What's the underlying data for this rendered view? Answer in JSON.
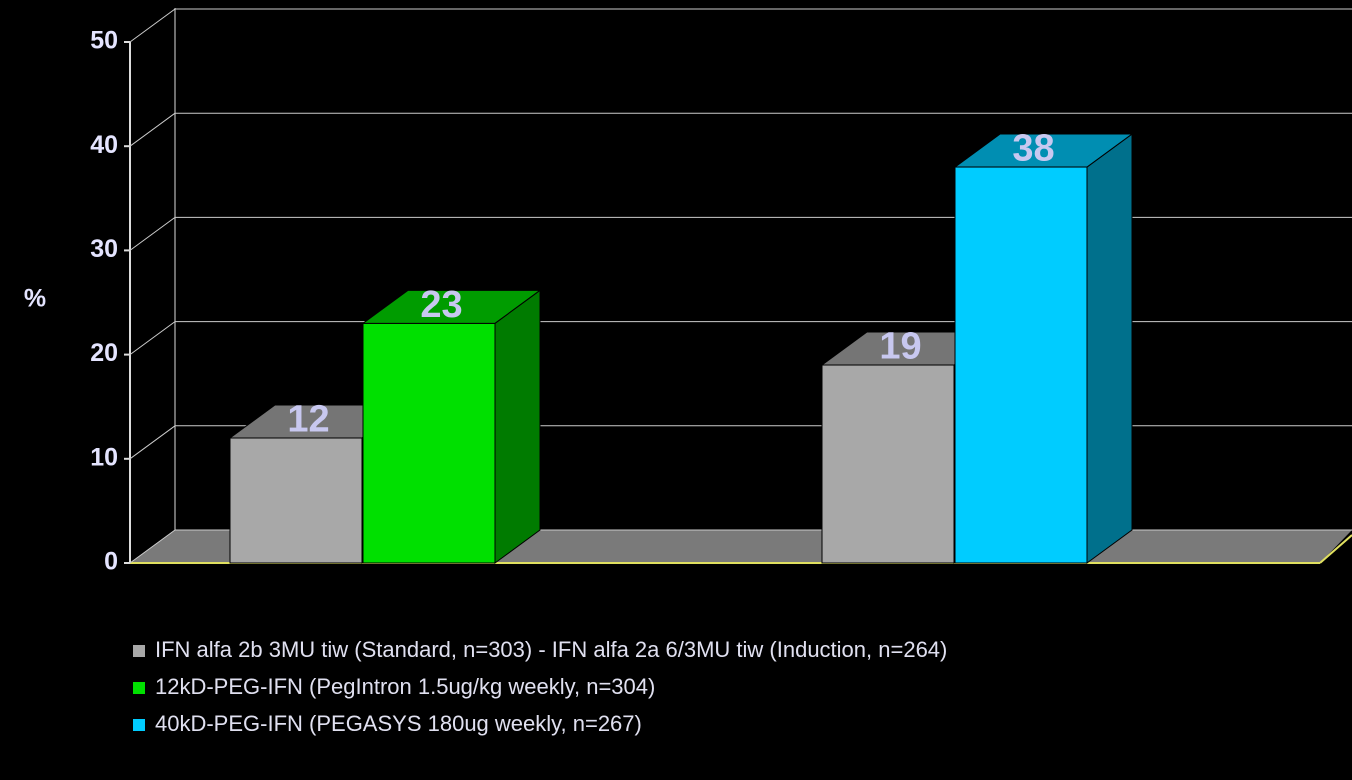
{
  "chart_data": {
    "type": "bar3d",
    "y_label": "%",
    "categories": [
      null,
      null
    ],
    "series": [
      {
        "name": "IFN alfa 2b 3MU tiw (Standard, n=303) - IFN alfa 2a 6/3MU tiw (Induction, n=264)",
        "color": "#a8a8a8",
        "values": [
          12,
          19
        ]
      },
      {
        "name": "12kD-PEG-IFN (PegIntron 1.5ug/kg weekly,  n=304)",
        "color": "#00e000",
        "values": [
          23,
          null
        ]
      },
      {
        "name": "40kD-PEG-IFN (PEGASYS 180ug weekly, n=267)",
        "color": "#00ccff",
        "values": [
          null,
          38
        ]
      }
    ],
    "ylim": [
      0,
      50
    ],
    "yticks": [
      0,
      10,
      20,
      30,
      40,
      50
    ],
    "grid": true,
    "legend": "bottom"
  }
}
